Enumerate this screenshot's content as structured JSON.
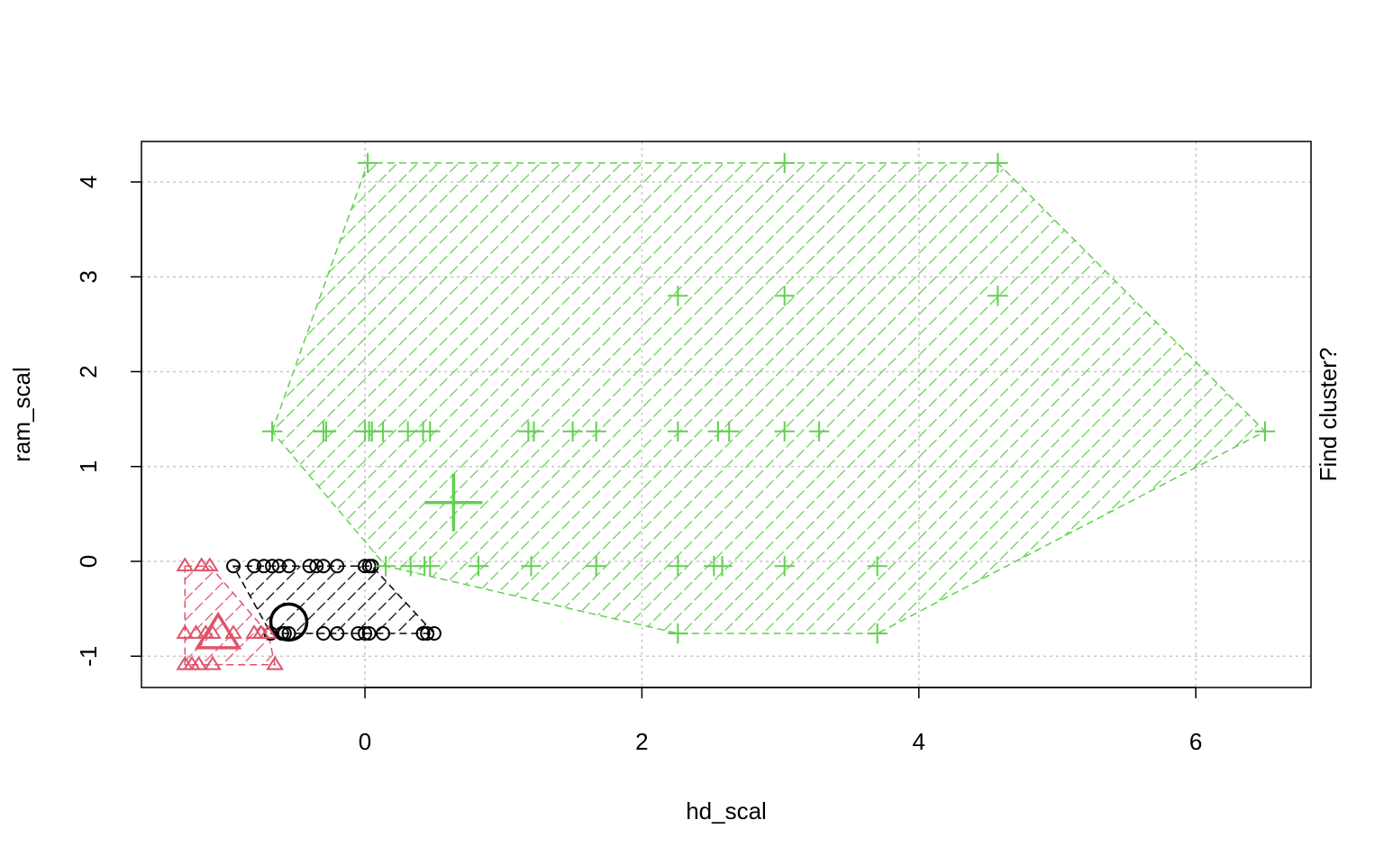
{
  "chart_data": {
    "type": "scatter",
    "x_label": "hd_scal",
    "y_label": "ram_scal",
    "side_label": "Find cluster?",
    "xlim": [
      -1.614,
      6.832
    ],
    "ylim": [
      -1.33,
      4.427
    ],
    "xticks": [
      0,
      2,
      4,
      6
    ],
    "yticks": [
      -1,
      0,
      1,
      2,
      3,
      4
    ],
    "grid": true,
    "clusters": [
      {
        "marker": "circle",
        "color": "#000000",
        "x": [
          -0.95,
          -0.8,
          -0.73,
          -0.67,
          -0.62,
          -0.55,
          -0.4,
          -0.35,
          -0.3,
          -0.2,
          0.0,
          0.03,
          0.05,
          -0.68,
          -0.6,
          -0.58,
          -0.55,
          -0.3,
          -0.2,
          -0.05,
          0.0,
          0.03,
          0.13,
          0.42,
          0.45,
          0.5
        ],
        "y": [
          -0.05,
          -0.05,
          -0.05,
          -0.05,
          -0.05,
          -0.05,
          -0.05,
          -0.05,
          -0.05,
          -0.05,
          -0.05,
          -0.05,
          -0.05,
          -0.76,
          -0.76,
          -0.76,
          -0.76,
          -0.76,
          -0.76,
          -0.76,
          -0.76,
          -0.76,
          -0.76,
          -0.76,
          -0.76,
          -0.76
        ],
        "center": [
          -0.55,
          -0.64
        ]
      },
      {
        "marker": "triangle",
        "color": "#DF536B",
        "x": [
          -1.3,
          -1.18,
          -1.12,
          -1.3,
          -1.22,
          -1.15,
          -1.1,
          -0.95,
          -0.8,
          -0.75,
          -0.7,
          -1.3,
          -1.25,
          -1.2,
          -1.1,
          -0.65
        ],
        "y": [
          -0.05,
          -0.05,
          -0.05,
          -0.76,
          -0.76,
          -0.76,
          -0.76,
          -0.76,
          -0.76,
          -0.76,
          -0.76,
          -1.09,
          -1.09,
          -1.09,
          -1.09,
          -1.09
        ],
        "center": [
          -1.06,
          -0.78
        ]
      },
      {
        "marker": "plus",
        "color": "#61D04F",
        "x": [
          0.02,
          3.03,
          4.57,
          2.26,
          3.03,
          4.57,
          -0.67,
          -0.3,
          -0.28,
          0.0,
          0.03,
          0.05,
          0.13,
          0.31,
          0.42,
          0.47,
          1.18,
          1.22,
          1.5,
          1.67,
          2.26,
          2.55,
          2.63,
          3.03,
          3.28,
          6.5,
          0.15,
          0.33,
          0.43,
          0.47,
          0.82,
          1.2,
          1.67,
          2.26,
          2.52,
          2.58,
          3.03,
          3.7,
          2.26,
          3.7
        ],
        "y": [
          4.2,
          4.2,
          4.2,
          2.8,
          2.8,
          2.8,
          1.37,
          1.37,
          1.37,
          1.37,
          1.37,
          1.37,
          1.37,
          1.37,
          1.37,
          1.37,
          1.37,
          1.37,
          1.37,
          1.37,
          1.37,
          1.37,
          1.37,
          1.37,
          1.37,
          1.37,
          -0.05,
          -0.05,
          -0.05,
          -0.05,
          -0.05,
          -0.05,
          -0.05,
          -0.05,
          -0.05,
          -0.05,
          -0.05,
          -0.05,
          -0.76,
          -0.76
        ],
        "center": [
          0.64,
          0.62
        ]
      }
    ]
  }
}
